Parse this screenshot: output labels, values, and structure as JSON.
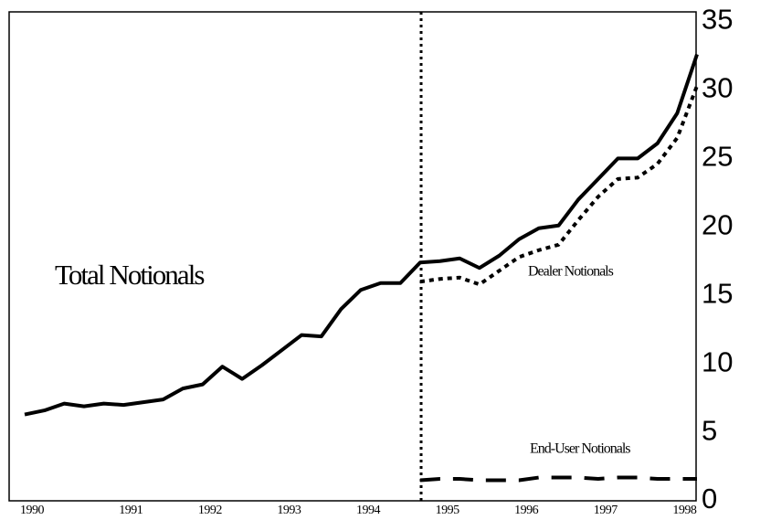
{
  "chart_data": {
    "type": "line",
    "categories": [
      "1990",
      null,
      null,
      null,
      null,
      "1991",
      null,
      null,
      null,
      "1992",
      null,
      null,
      null,
      "1993",
      null,
      null,
      null,
      "1994",
      null,
      null,
      null,
      "1995",
      null,
      null,
      null,
      "1996",
      null,
      null,
      null,
      "1997",
      null,
      null,
      null,
      "1998",
      null
    ],
    "series": [
      {
        "name": "Total Notionals",
        "color": "#000000",
        "dash": "solid",
        "values": [
          6.3,
          6.6,
          7.1,
          6.9,
          7.1,
          7.0,
          7.2,
          7.4,
          8.2,
          8.5,
          9.8,
          8.9,
          9.9,
          11.0,
          12.1,
          12.0,
          14.0,
          15.4,
          15.9,
          15.9,
          17.4,
          17.5,
          17.7,
          17.0,
          17.9,
          19.1,
          19.9,
          20.1,
          22.0,
          23.5,
          25.0,
          25.0,
          26.1,
          28.3,
          32.6
        ]
      },
      {
        "name": "Dealer Notionals",
        "color": "#000000",
        "dash": "dotted",
        "values": [
          null,
          null,
          null,
          null,
          null,
          null,
          null,
          null,
          null,
          null,
          null,
          null,
          null,
          null,
          null,
          null,
          null,
          null,
          null,
          null,
          16.0,
          16.2,
          16.3,
          15.8,
          16.8,
          17.8,
          18.3,
          18.7,
          20.5,
          22.2,
          23.5,
          23.6,
          24.6,
          26.5,
          30.3
        ]
      },
      {
        "name": "End-User Notionals",
        "color": "#000000",
        "dash": "dashed",
        "values": [
          null,
          null,
          null,
          null,
          null,
          null,
          null,
          null,
          null,
          null,
          null,
          null,
          null,
          null,
          null,
          null,
          null,
          null,
          null,
          null,
          1.5,
          1.6,
          1.6,
          1.5,
          1.5,
          1.5,
          1.7,
          1.7,
          1.7,
          1.6,
          1.7,
          1.7,
          1.6,
          1.6,
          1.6
        ]
      }
    ],
    "ylim": [
      0,
      35.7
    ],
    "yticks": [
      0,
      5,
      10,
      15,
      20,
      25,
      30,
      35
    ],
    "y_axis_side": "right",
    "grid": false
  }
}
